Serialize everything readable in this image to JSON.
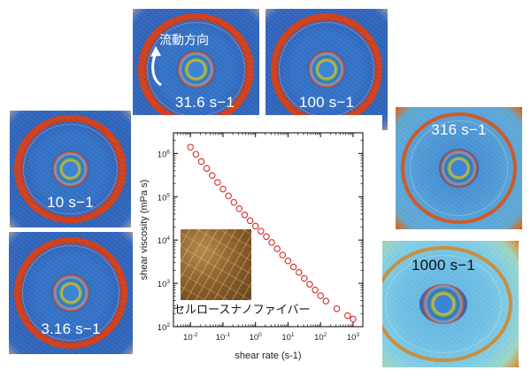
{
  "flow_label": "流動方向",
  "inset_caption": "セルロースナノファイバー",
  "panels": [
    {
      "label": "31.6 s−1"
    },
    {
      "label": "100 s−1"
    },
    {
      "label": "10 s−1"
    },
    {
      "label": "316 s−1"
    },
    {
      "label": "3.16 s−1"
    },
    {
      "label": "1000 s−1"
    }
  ],
  "chart_data": {
    "type": "scatter",
    "xlabel": "shear rate (s-1)",
    "ylabel": "shear viscosity (mPa s)",
    "x_scale": "log",
    "y_scale": "log",
    "xlim": [
      0.003,
      2000
    ],
    "ylim": [
      100,
      3000000
    ],
    "x_ticks": [
      {
        "value": 0.01,
        "base": "10",
        "exp": "-2"
      },
      {
        "value": 0.1,
        "base": "10",
        "exp": "-1"
      },
      {
        "value": 1,
        "base": "10",
        "exp": "0"
      },
      {
        "value": 10,
        "base": "10",
        "exp": "1"
      },
      {
        "value": 100,
        "base": "10",
        "exp": "2"
      },
      {
        "value": 1000,
        "base": "10",
        "exp": "3"
      }
    ],
    "y_ticks": [
      {
        "value": 100,
        "base": "10",
        "exp": "2"
      },
      {
        "value": 1000,
        "base": "10",
        "exp": "3"
      },
      {
        "value": 10000,
        "base": "10",
        "exp": "4"
      },
      {
        "value": 100000,
        "base": "10",
        "exp": "5"
      },
      {
        "value": 1000000,
        "base": "10",
        "exp": "6"
      }
    ],
    "marker_color": "#d62a2a",
    "points": [
      {
        "x": 0.01,
        "y": 1400000
      },
      {
        "x": 0.0147,
        "y": 960000
      },
      {
        "x": 0.0216,
        "y": 650000
      },
      {
        "x": 0.0316,
        "y": 450000
      },
      {
        "x": 0.0464,
        "y": 310000
      },
      {
        "x": 0.0681,
        "y": 215000
      },
      {
        "x": 0.1,
        "y": 150000
      },
      {
        "x": 0.147,
        "y": 105000
      },
      {
        "x": 0.216,
        "y": 74000
      },
      {
        "x": 0.316,
        "y": 53000
      },
      {
        "x": 0.464,
        "y": 38000
      },
      {
        "x": 0.681,
        "y": 28000
      },
      {
        "x": 1.0,
        "y": 21000
      },
      {
        "x": 1.47,
        "y": 16000
      },
      {
        "x": 2.16,
        "y": 12000
      },
      {
        "x": 3.16,
        "y": 8800
      },
      {
        "x": 4.64,
        "y": 6300
      },
      {
        "x": 6.81,
        "y": 4500
      },
      {
        "x": 10,
        "y": 3300
      },
      {
        "x": 14.7,
        "y": 2400
      },
      {
        "x": 21.6,
        "y": 1800
      },
      {
        "x": 31.6,
        "y": 1300
      },
      {
        "x": 46.4,
        "y": 950
      },
      {
        "x": 68.1,
        "y": 700
      },
      {
        "x": 100,
        "y": 520
      },
      {
        "x": 147,
        "y": 390
      },
      {
        "x": 316,
        "y": 260
      },
      {
        "x": 681,
        "y": 180
      },
      {
        "x": 1000,
        "y": 150
      }
    ]
  }
}
